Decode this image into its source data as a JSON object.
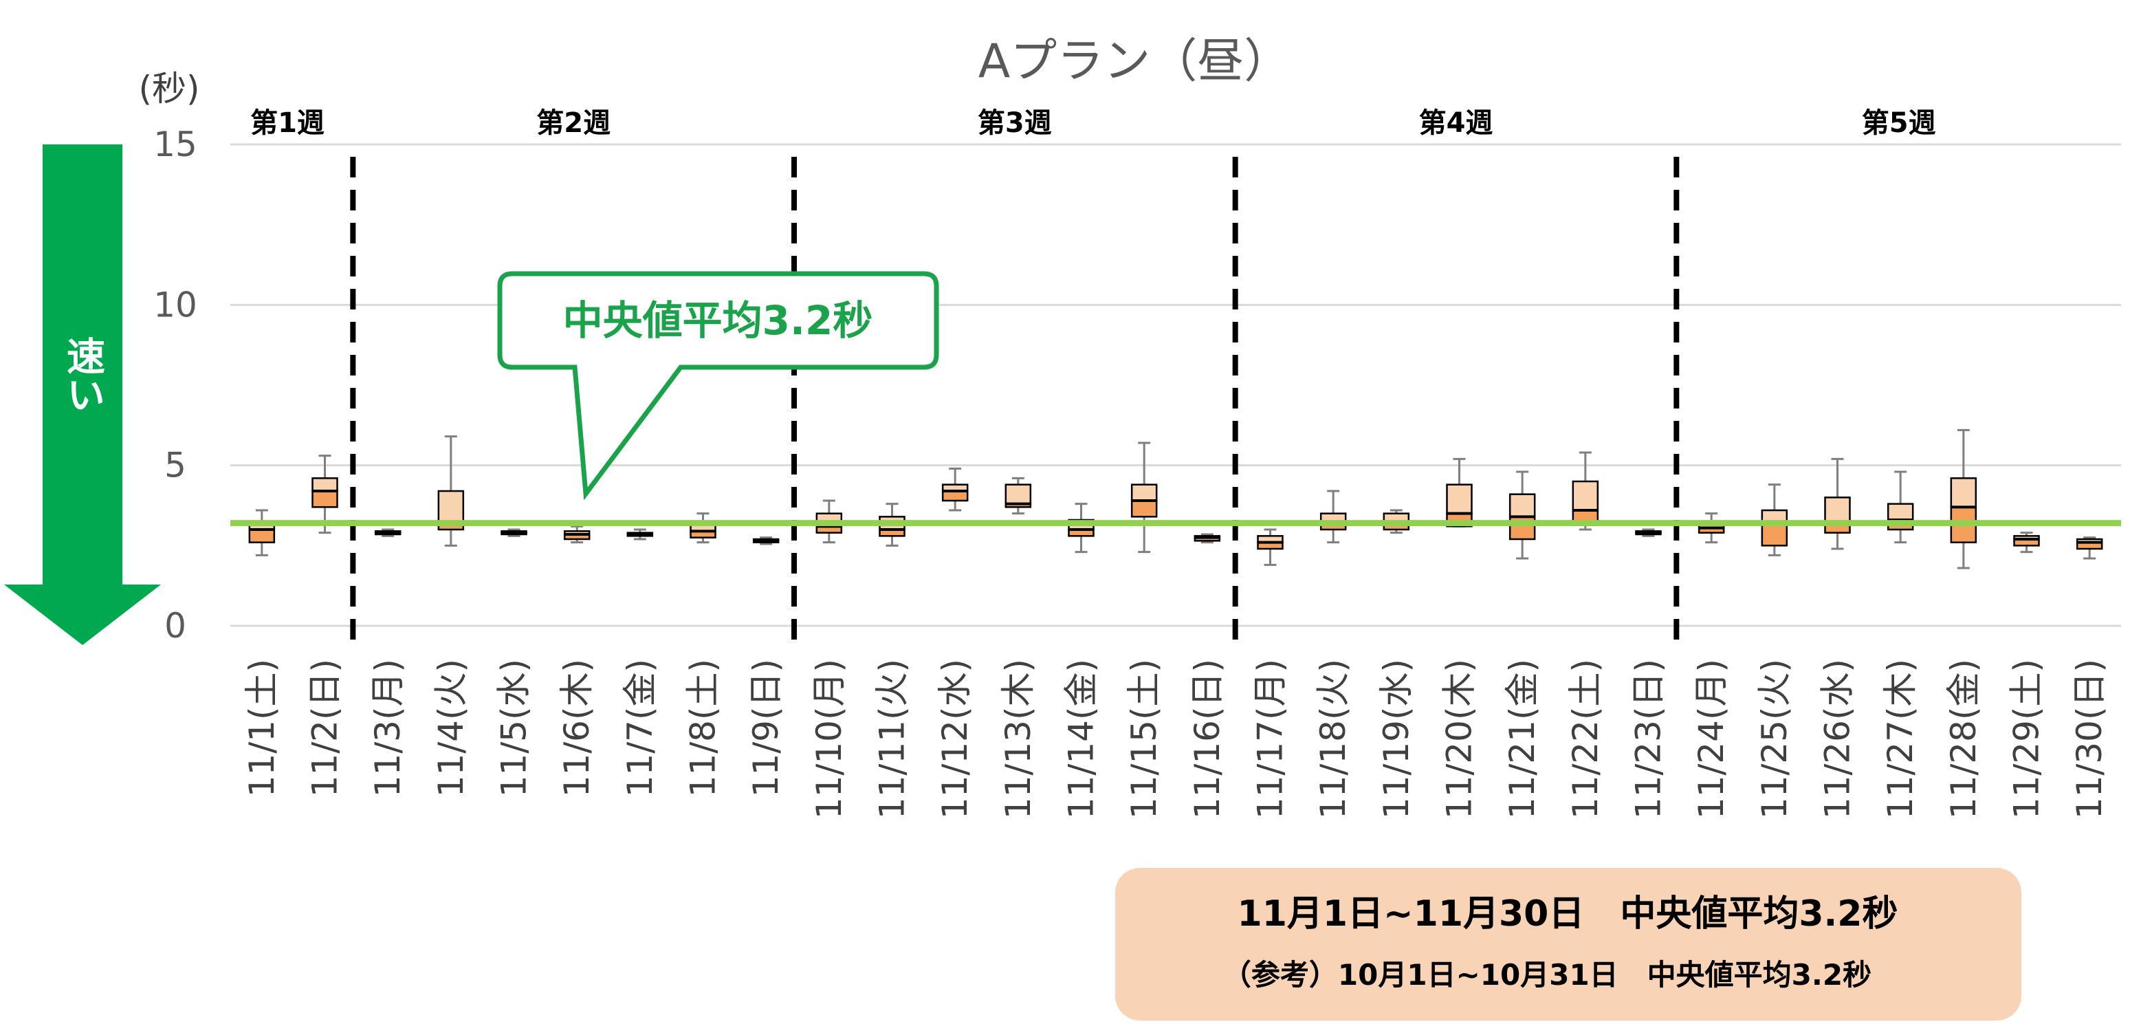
{
  "chart_data": {
    "type": "boxplot",
    "title": "Aプラン（昼）",
    "ylabel": "(秒)",
    "ylim": [
      0,
      15
    ],
    "yticks": [
      "0",
      "5",
      "10",
      "15"
    ],
    "gridlines": true,
    "weeks": [
      "第1週",
      "第2週",
      "第3週",
      "第4週",
      "第5週"
    ],
    "categories": [
      "11/1(土)",
      "11/2(日)",
      "11/3(月)",
      "11/4(火)",
      "11/5(水)",
      "11/6(木)",
      "11/7(金)",
      "11/8(土)",
      "11/9(日)",
      "11/10(月)",
      "11/11(火)",
      "11/12(水)",
      "11/13(木)",
      "11/14(金)",
      "11/15(土)",
      "11/16(日)",
      "11/17(月)",
      "11/18(火)",
      "11/19(水)",
      "11/20(木)",
      "11/21(金)",
      "11/22(土)",
      "11/23(日)",
      "11/24(月)",
      "11/25(火)",
      "11/26(水)",
      "11/27(木)",
      "11/28(金)",
      "11/29(土)",
      "11/30(日)"
    ],
    "boxes": [
      {
        "min": 2.2,
        "q1": 2.6,
        "median": 3.0,
        "q3": 3.2,
        "max": 3.6
      },
      {
        "min": 2.9,
        "q1": 3.7,
        "median": 4.2,
        "q3": 4.6,
        "max": 5.3
      },
      {
        "min": 2.8,
        "q1": 2.85,
        "median": 2.9,
        "q3": 2.95,
        "max": 3.0
      },
      {
        "min": 2.5,
        "q1": 3.0,
        "median": 3.2,
        "q3": 4.2,
        "max": 5.9
      },
      {
        "min": 2.8,
        "q1": 2.85,
        "median": 2.9,
        "q3": 2.95,
        "max": 3.0
      },
      {
        "min": 2.6,
        "q1": 2.7,
        "median": 2.85,
        "q3": 2.95,
        "max": 3.1
      },
      {
        "min": 2.7,
        "q1": 2.8,
        "median": 2.85,
        "q3": 2.9,
        "max": 3.0
      },
      {
        "min": 2.6,
        "q1": 2.75,
        "median": 2.95,
        "q3": 3.2,
        "max": 3.5
      },
      {
        "min": 2.55,
        "q1": 2.6,
        "median": 2.65,
        "q3": 2.7,
        "max": 2.75
      },
      {
        "min": 2.6,
        "q1": 2.9,
        "median": 3.1,
        "q3": 3.5,
        "max": 3.9
      },
      {
        "min": 2.5,
        "q1": 2.8,
        "median": 3.0,
        "q3": 3.4,
        "max": 3.8
      },
      {
        "min": 3.6,
        "q1": 3.9,
        "median": 4.2,
        "q3": 4.4,
        "max": 4.9
      },
      {
        "min": 3.5,
        "q1": 3.7,
        "median": 3.8,
        "q3": 4.4,
        "max": 4.6
      },
      {
        "min": 2.3,
        "q1": 2.8,
        "median": 3.0,
        "q3": 3.3,
        "max": 3.8
      },
      {
        "min": 2.3,
        "q1": 3.4,
        "median": 3.9,
        "q3": 4.4,
        "max": 5.7
      },
      {
        "min": 2.6,
        "q1": 2.65,
        "median": 2.75,
        "q3": 2.8,
        "max": 2.85
      },
      {
        "min": 1.9,
        "q1": 2.4,
        "median": 2.6,
        "q3": 2.8,
        "max": 3.0
      },
      {
        "min": 2.6,
        "q1": 3.0,
        "median": 3.2,
        "q3": 3.5,
        "max": 4.2
      },
      {
        "min": 2.9,
        "q1": 3.0,
        "median": 3.2,
        "q3": 3.5,
        "max": 3.6
      },
      {
        "min": 3.1,
        "q1": 3.1,
        "median": 3.5,
        "q3": 4.4,
        "max": 5.2
      },
      {
        "min": 2.1,
        "q1": 2.7,
        "median": 3.4,
        "q3": 4.1,
        "max": 4.8
      },
      {
        "min": 3.0,
        "q1": 3.2,
        "median": 3.6,
        "q3": 4.5,
        "max": 5.4
      },
      {
        "min": 2.8,
        "q1": 2.85,
        "median": 2.9,
        "q3": 2.95,
        "max": 3.0
      },
      {
        "min": 2.6,
        "q1": 2.9,
        "median": 3.05,
        "q3": 3.2,
        "max": 3.5
      },
      {
        "min": 2.2,
        "q1": 2.5,
        "median": 3.2,
        "q3": 3.6,
        "max": 4.4
      },
      {
        "min": 2.4,
        "q1": 2.9,
        "median": 3.2,
        "q3": 4.0,
        "max": 5.2
      },
      {
        "min": 2.6,
        "q1": 3.0,
        "median": 3.3,
        "q3": 3.8,
        "max": 4.8
      },
      {
        "min": 1.8,
        "q1": 2.6,
        "median": 3.7,
        "q3": 4.6,
        "max": 6.1
      },
      {
        "min": 2.3,
        "q1": 2.5,
        "median": 2.7,
        "q3": 2.8,
        "max": 2.9
      },
      {
        "min": 2.1,
        "q1": 2.4,
        "median": 2.6,
        "q3": 2.7,
        "max": 2.75
      }
    ],
    "reference_line": 3.2,
    "week_boundaries_after": [
      "11/2(日)",
      "11/9(日)",
      "11/16(日)",
      "11/23(日)"
    ],
    "callout": "中央値平均3.2秒",
    "arrow_label": "速い",
    "summary_line1": "11月1日~11月30日　中央値平均3.2秒",
    "summary_line2": "（参考）10月1日~10月31日　中央値平均3.2秒",
    "colors": {
      "box_upper": "#f9d3b0",
      "box_lower": "#f4a05a",
      "box_stroke": "#000000",
      "whisker": "#7f7f7f",
      "reference_line": "#92d050",
      "callout_border": "#1aa34a",
      "arrow": "#00a94f",
      "summary_bg": "#f9d3b5",
      "grid": "#d9d9d9"
    }
  }
}
